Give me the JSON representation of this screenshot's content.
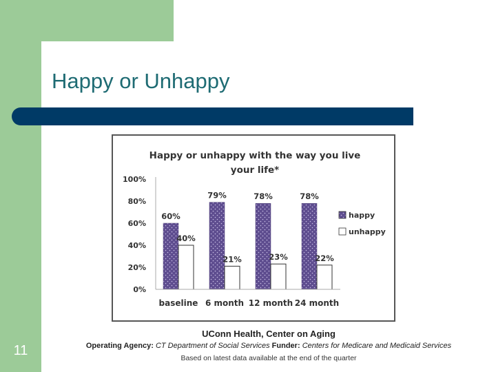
{
  "slide": {
    "title": "Happy or Unhappy",
    "number": "11"
  },
  "colors": {
    "band": "#9ccb98",
    "title": "#1e6b73",
    "bar_strip": "#003a66",
    "happy": "#5e4d8f",
    "unhappy": "#ffffff"
  },
  "chart_data": {
    "type": "bar",
    "title_line1": "Happy or unhappy with the way you live",
    "title_line2": "your life*",
    "categories": [
      "baseline",
      "6 month",
      "12 month",
      "24 month"
    ],
    "series": [
      {
        "name": "happy",
        "values": [
          60,
          79,
          78,
          78
        ],
        "labels": [
          "60%",
          "79%",
          "78%",
          "78%"
        ]
      },
      {
        "name": "unhappy",
        "values": [
          40,
          21,
          23,
          22
        ],
        "labels": [
          "40%",
          "21%",
          "23%",
          "22%"
        ]
      }
    ],
    "y_ticks": [
      "0%",
      "20%",
      "40%",
      "60%",
      "80%",
      "100%"
    ],
    "ylim": [
      0,
      100
    ],
    "legend_position": "right"
  },
  "footer": {
    "org": "UConn Health, Center on Aging",
    "agency_label": "Operating Agency:",
    "agency_value": "CT Department of Social Services",
    "funder_label": "Funder:",
    "funder_value": "Centers for Medicare and Medicaid Services",
    "note": "Based on latest data available at the end of the quarter"
  }
}
